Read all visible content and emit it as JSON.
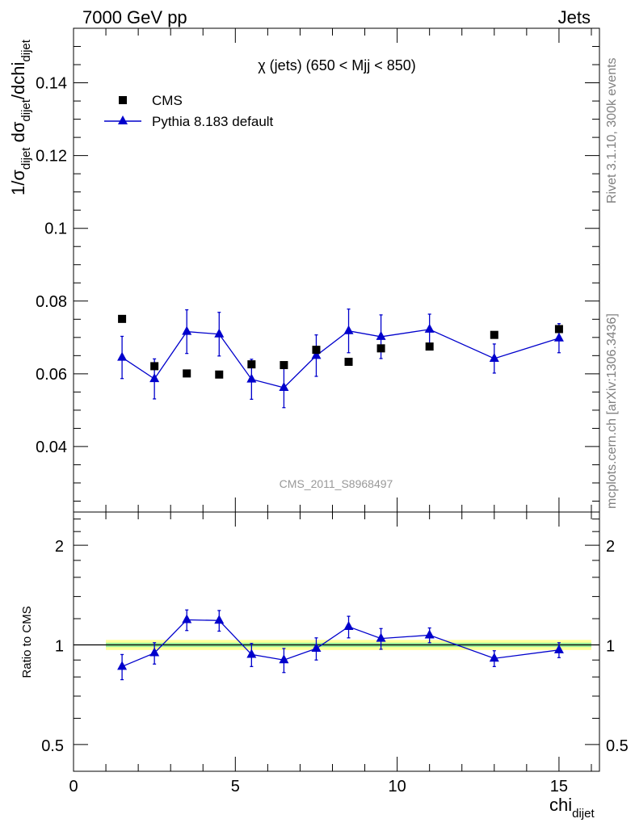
{
  "header": {
    "left": "7000 GeV pp",
    "right": "Jets"
  },
  "side_labels": {
    "rivet": "Rivet 3.1.10,  300k events",
    "mcplots": "mcplots.cern.ch [arXiv:1306.3436]"
  },
  "chart_data": [
    {
      "type": "scatter",
      "title": "χ (jets) (650 < Mjj <  850)",
      "watermark": "CMS_2011_S8968497",
      "ylabel": "1/σdijet dσdijet/dchidijet",
      "ylim": [
        0.022,
        0.155
      ],
      "xlim": [
        0,
        16.25
      ],
      "y_ticks": [
        0.04,
        0.06,
        0.08,
        0.1,
        0.12,
        0.14
      ],
      "y_tick_labels": [
        "0.04",
        "0.06",
        "0.08",
        "0.1",
        "0.12",
        "0.14"
      ],
      "legend_position": "top-left",
      "series": [
        {
          "name": "CMS",
          "marker": "square",
          "color": "#000000",
          "x": [
            1.5,
            2.5,
            3.5,
            4.5,
            5.5,
            6.5,
            7.5,
            8.5,
            9.5,
            11.0,
            13.0,
            15.0
          ],
          "y": [
            0.0751,
            0.0621,
            0.0601,
            0.0598,
            0.0626,
            0.0624,
            0.0666,
            0.0633,
            0.067,
            0.0675,
            0.0707,
            0.0723
          ]
        },
        {
          "name": "Pythia 8.183 default",
          "marker": "triangle",
          "color": "#0000cc",
          "line": true,
          "x": [
            1.5,
            2.5,
            3.5,
            4.5,
            5.5,
            6.5,
            7.5,
            8.5,
            9.5,
            11.0,
            13.0,
            15.0
          ],
          "y": [
            0.0645,
            0.0586,
            0.0716,
            0.0709,
            0.0585,
            0.0562,
            0.065,
            0.0718,
            0.0702,
            0.0722,
            0.0642,
            0.0698
          ],
          "yerr": [
            0.0058,
            0.0055,
            0.006,
            0.006,
            0.0055,
            0.0055,
            0.0057,
            0.006,
            0.006,
            0.0042,
            0.004,
            0.004
          ]
        }
      ]
    },
    {
      "type": "line",
      "ylabel": "Ratio to CMS",
      "xlabel": "chidijet",
      "xlim": [
        0,
        16.25
      ],
      "x_ticks": [
        0,
        5,
        10,
        15
      ],
      "x_tick_labels": [
        "0",
        "5",
        "10",
        "15"
      ],
      "ylim_log": [
        0.415,
        2.52
      ],
      "y_ticks": [
        0.5,
        1,
        2
      ],
      "y_tick_labels": [
        "0.5",
        "1",
        "2"
      ],
      "reference": 1,
      "band_outer": [
        0.965,
        1.035
      ],
      "band_inner": [
        0.985,
        1.015
      ],
      "band_x": [
        1,
        16
      ],
      "series": [
        {
          "name": "Pythia 8.183 default",
          "color": "#0000cc",
          "x": [
            1.5,
            2.5,
            3.5,
            4.5,
            5.5,
            6.5,
            7.5,
            8.5,
            9.5,
            11.0,
            13.0,
            15.0
          ],
          "y": [
            0.86,
            0.945,
            1.19,
            1.185,
            0.935,
            0.9,
            0.975,
            1.135,
            1.045,
            1.07,
            0.91,
            0.965
          ],
          "yerr": [
            0.075,
            0.07,
            0.085,
            0.085,
            0.075,
            0.075,
            0.075,
            0.085,
            0.075,
            0.055,
            0.05,
            0.05
          ]
        }
      ]
    }
  ],
  "colors": {
    "data": "#000000",
    "mc": "#0000cc",
    "band_outer": "#ffff99",
    "band_inner": "#99ee99",
    "reference_line": "#000000",
    "side_text": "#808080"
  }
}
